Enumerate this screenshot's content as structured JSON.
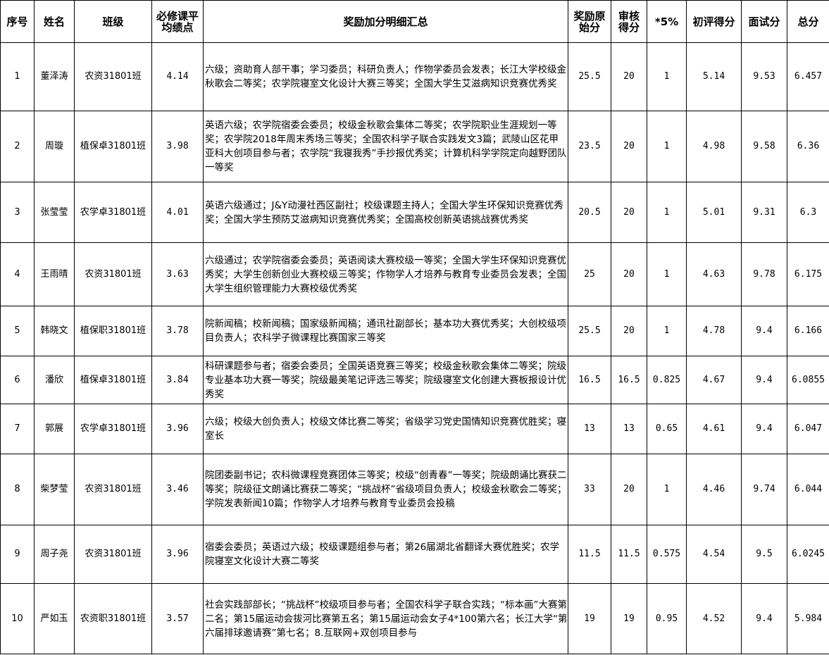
{
  "headers": [
    "序号",
    "姓名",
    "班级",
    "必修课平均绩点",
    "奖励加分明细汇总",
    "奖励原始分",
    "审核得分",
    "*5%",
    "初评得分",
    "面试分",
    "总分"
  ],
  "rows": [
    {
      "no": "1",
      "name": "董泽涛",
      "class": "农资31801班",
      "gpa": "4.14",
      "detail": "六级；资助育人部干事；学习委员；科研负责人；作物学委员会发表；长江大学校级金秋歌会二等奖；农学院寝室文化设计大赛三等奖；全国大学生艾滋病知识竞赛优秀奖",
      "raw": "25.5",
      "audit": "20",
      "pct": "1",
      "initial": "5.14",
      "interview": "9.53",
      "total": "6.457"
    },
    {
      "no": "2",
      "name": "周璇",
      "class": "植保卓31801班",
      "gpa": "3.98",
      "detail": "英语六级；农学院宿委会委员；校级金秋歌会集体二等奖；农学院职业生涯规划一等奖；农学院2018年周末秀场三等奖；全国农科学子联合实践发文3篇；武陵山区花甲亚科大创项目参与者；农学院“我寝我秀”手抄报优秀奖；计算机科学学院定向越野团队一等奖",
      "raw": "23.5",
      "audit": "20",
      "pct": "1",
      "initial": "4.98",
      "interview": "9.58",
      "total": "6.36"
    },
    {
      "no": "3",
      "name": "张莹莹",
      "class": "农学卓31801班",
      "gpa": "4.01",
      "detail": "英语六级通过；J&Y动漫社西区副社；校级课题主持人；全国大学生环保知识竞赛优秀奖；全国大学生预防艾滋病知识竞赛优秀奖；全国高校创新英语挑战赛优秀奖",
      "raw": "20.5",
      "audit": "20",
      "pct": "1",
      "initial": "5.01",
      "interview": "9.31",
      "total": "6.3"
    },
    {
      "no": "4",
      "name": "王雨晴",
      "class": "农资31801班",
      "gpa": "3.63",
      "detail": "六级通过；农学院宿委会委员；英语阅读大赛校级一等奖；全国大学生环保知识竞赛优秀奖；大学生创新创业大赛校级三等奖；作物学人才培养与教育专业委员会发表；全国大学生组织管理能力大赛校级优秀奖",
      "raw": "25",
      "audit": "20",
      "pct": "1",
      "initial": "4.63",
      "interview": "9.78",
      "total": "6.175"
    },
    {
      "no": "5",
      "name": "韩晓文",
      "class": "植保职31801班",
      "gpa": "3.78",
      "detail": "院新闻稿；校新闻稿；国家级新闻稿；通讯社副部长；基本功大赛优秀奖；大创校级项目负责人；农科学子微课程比赛国家三等奖",
      "raw": "25.5",
      "audit": "20",
      "pct": "1",
      "initial": "4.78",
      "interview": "9.4",
      "total": "6.166"
    },
    {
      "no": "6",
      "name": "潘欣",
      "class": "植保卓31801班",
      "gpa": "3.84",
      "detail": "科研课题参与者；宿委会委员；全国英语竞赛三等奖；校级金秋歌会集体二等奖；院级专业基本功大赛一等奖；院级最美笔记评选三等奖；院级寝室文化创建大赛板报设计优秀奖",
      "raw": "16.5",
      "audit": "16.5",
      "pct": "0.825",
      "initial": "4.67",
      "interview": "9.4",
      "total": "6.0855"
    },
    {
      "no": "7",
      "name": "郭展",
      "class": "农学卓31801班",
      "gpa": "3.96",
      "detail": "六级；校级大创负责人；校级文体比赛二等奖；省级学习党史国情知识竞赛优胜奖；寝室长",
      "raw": "13",
      "audit": "13",
      "pct": "0.65",
      "initial": "4.61",
      "interview": "9.4",
      "total": "6.047"
    },
    {
      "no": "8",
      "name": "柴梦莹",
      "class": "农资31801班",
      "gpa": "3.46",
      "detail": "院团委副书记；农科微课程竞赛团体三等奖；校级“创青春”一等奖；院级朗诵比赛获二等奖；院级征文朗诵比赛获二等奖；“挑战杯”省级项目负责人；校级金秋歌会二等奖；学院发表新闻10篇；作物学人才培养与教育专业委员会投稿",
      "raw": "33",
      "audit": "20",
      "pct": "1",
      "initial": "4.46",
      "interview": "9.74",
      "total": "6.044"
    },
    {
      "no": "9",
      "name": "周子尧",
      "class": "农资31801班",
      "gpa": "3.96",
      "detail": "宿委会委员；英语过六级；校级课题组参与者；第26届湖北省翻译大赛优胜奖；农学院寝室文化设计大赛二等奖",
      "raw": "11.5",
      "audit": "11.5",
      "pct": "0.575",
      "initial": "4.54",
      "interview": "9.5",
      "total": "6.0245"
    },
    {
      "no": "10",
      "name": "严如玉",
      "class": "农资职31801班",
      "gpa": "3.57",
      "detail": "社会实践部部长；“挑战杯”校级项目参与者；全国农科学子联合实践；“标本画”大赛第二名；第15届运动会拔河比赛第五名；第15届运动会女子4*100第六名；长江大学“第六届排球邀请赛”第七名；8.互联网+双创项目参与",
      "raw": "19",
      "audit": "19",
      "pct": "0.95",
      "initial": "4.52",
      "interview": "9.4",
      "total": "5.984"
    }
  ]
}
